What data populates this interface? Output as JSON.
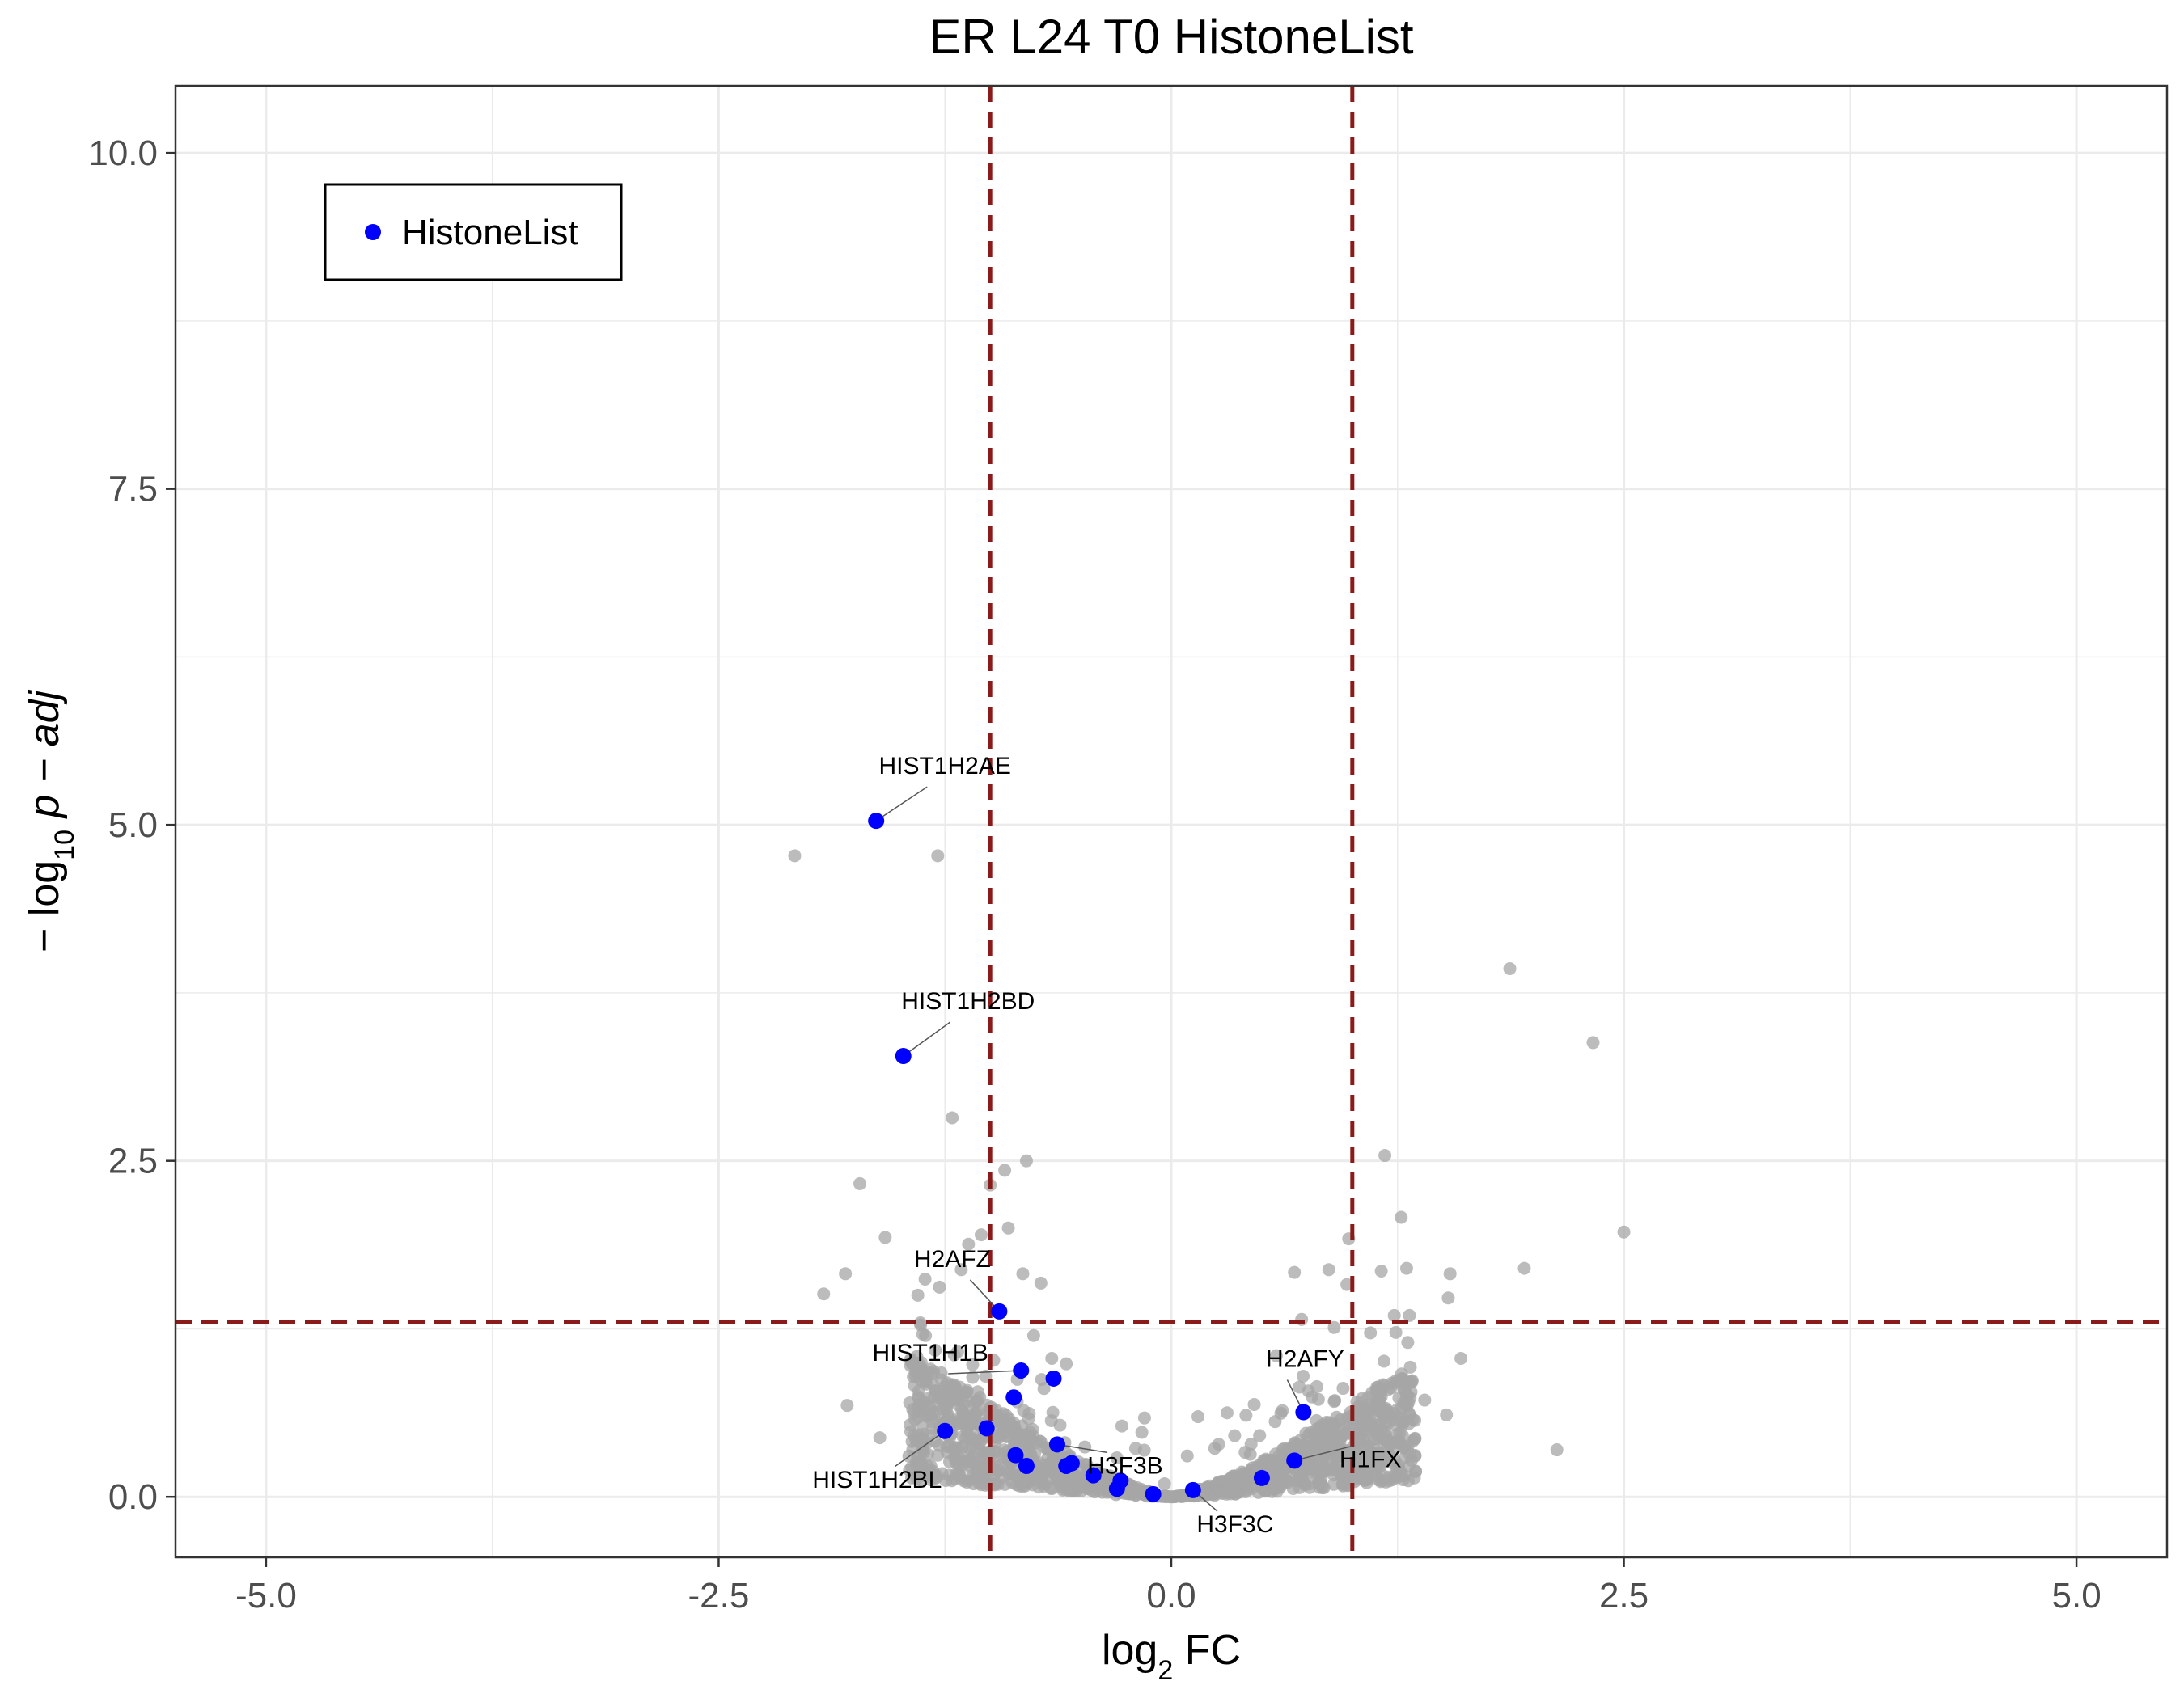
{
  "chart_data": {
    "type": "scatter",
    "title": "ER L24 T0 HistoneList",
    "xlabel": {
      "main": "log",
      "sub": "2",
      "tail": " FC"
    },
    "ylabel": {
      "prefix": "− log",
      "sub": "10",
      "italic": " p − adj"
    },
    "xlim": [
      -5.5,
      5.5
    ],
    "ylim": [
      -0.45,
      10.5
    ],
    "x_ticks": [
      -5.0,
      -2.5,
      0.0,
      2.5,
      5.0
    ],
    "x_tick_labels": [
      "-5.0",
      "-2.5",
      "0.0",
      "2.5",
      "5.0"
    ],
    "y_ticks": [
      0.0,
      2.5,
      5.0,
      7.5,
      10.0
    ],
    "y_tick_labels": [
      "0.0",
      "2.5",
      "5.0",
      "7.5",
      "10.0"
    ],
    "grid": true,
    "legend_position": "top-left",
    "thresholds": {
      "fc_lines": [
        -1,
        1
      ],
      "p_line": 1.3,
      "color": "#8b1a1a"
    },
    "colors": {
      "background_points": "#a6a6a6",
      "highlight": "#0000ff",
      "panel_border": "#333333",
      "grid": "#ebebeb"
    },
    "series": [
      {
        "name": "HistoneList",
        "color": "#0000ff",
        "points": [
          {
            "x": -1.63,
            "y": 5.03,
            "label": "HIST1H2AE"
          },
          {
            "x": -1.48,
            "y": 3.28,
            "label": "HIST1H2BD"
          },
          {
            "x": -0.95,
            "y": 1.38,
            "label": "H2AFZ"
          },
          {
            "x": -0.83,
            "y": 0.94,
            "label": "HIST1H1B"
          },
          {
            "x": -0.65,
            "y": 0.88,
            "label": ""
          },
          {
            "x": -0.87,
            "y": 0.74,
            "label": ""
          },
          {
            "x": -0.63,
            "y": 0.39,
            "label": "H3F3B"
          },
          {
            "x": -1.25,
            "y": 0.49,
            "label": "HIST1H2BL"
          },
          {
            "x": -1.02,
            "y": 0.51,
            "label": ""
          },
          {
            "x": -0.86,
            "y": 0.31,
            "label": ""
          },
          {
            "x": -0.8,
            "y": 0.23,
            "label": ""
          },
          {
            "x": -0.58,
            "y": 0.23,
            "label": ""
          },
          {
            "x": -0.55,
            "y": 0.25,
            "label": ""
          },
          {
            "x": -0.43,
            "y": 0.16,
            "label": ""
          },
          {
            "x": -0.28,
            "y": 0.12,
            "label": ""
          },
          {
            "x": -0.3,
            "y": 0.06,
            "label": ""
          },
          {
            "x": -0.1,
            "y": 0.02,
            "label": ""
          },
          {
            "x": 0.12,
            "y": 0.05,
            "label": "H3F3C"
          },
          {
            "x": 0.5,
            "y": 0.14,
            "label": ""
          },
          {
            "x": 0.68,
            "y": 0.27,
            "label": "H1FX"
          },
          {
            "x": 0.73,
            "y": 0.63,
            "label": "H2AFY"
          }
        ]
      },
      {
        "name": "",
        "color": "#a6a6a6",
        "points": [
          {
            "x": -2.08,
            "y": 4.77
          },
          {
            "x": -1.29,
            "y": 4.77
          },
          {
            "x": 1.87,
            "y": 3.93
          },
          {
            "x": 2.33,
            "y": 3.38
          },
          {
            "x": -1.21,
            "y": 2.82
          },
          {
            "x": -0.8,
            "y": 2.5
          },
          {
            "x": -0.92,
            "y": 2.43
          },
          {
            "x": -1.72,
            "y": 2.33
          },
          {
            "x": -1.0,
            "y": 2.32
          },
          {
            "x": 1.18,
            "y": 2.54
          },
          {
            "x": 1.27,
            "y": 2.08
          },
          {
            "x": 2.5,
            "y": 1.97
          },
          {
            "x": -0.9,
            "y": 2.0
          },
          {
            "x": -1.58,
            "y": 1.93
          },
          {
            "x": 0.98,
            "y": 1.92
          },
          {
            "x": 1.95,
            "y": 1.7
          },
          {
            "x": -1.8,
            "y": 1.66
          },
          {
            "x": -1.92,
            "y": 1.51
          },
          {
            "x": 1.54,
            "y": 1.66
          },
          {
            "x": 1.53,
            "y": 1.48
          },
          {
            "x": 0.68,
            "y": 1.67
          },
          {
            "x": 0.87,
            "y": 1.69
          },
          {
            "x": 0.97,
            "y": 1.58
          },
          {
            "x": 1.16,
            "y": 1.68
          },
          {
            "x": 1.3,
            "y": 1.7
          },
          {
            "x": -1.12,
            "y": 1.88
          },
          {
            "x": -1.05,
            "y": 1.95
          },
          {
            "x": -0.82,
            "y": 1.66
          },
          {
            "x": -0.72,
            "y": 1.59
          },
          {
            "x": -1.16,
            "y": 1.69
          },
          {
            "x": -1.36,
            "y": 1.62
          },
          {
            "x": -1.4,
            "y": 1.5
          },
          {
            "x": -1.28,
            "y": 1.56
          },
          {
            "x": 1.6,
            "y": 1.03
          },
          {
            "x": 2.13,
            "y": 0.35
          },
          {
            "x": -1.79,
            "y": 0.68
          },
          {
            "x": -1.61,
            "y": 0.44
          },
          {
            "x": 1.52,
            "y": 0.61
          },
          {
            "x": 1.4,
            "y": 0.72
          },
          {
            "x": -0.66,
            "y": 1.03
          },
          {
            "x": -0.58,
            "y": 0.99
          },
          {
            "x": 0.72,
            "y": 1.32
          },
          {
            "x": 0.9,
            "y": 1.26
          },
          {
            "x": 1.1,
            "y": 1.22
          },
          {
            "x": 0.58,
            "y": 1.05
          },
          {
            "x": -0.76,
            "y": 1.2
          },
          {
            "x": -1.18,
            "y": 1.08
          },
          {
            "x": -1.33,
            "y": 0.95
          }
        ]
      }
    ]
  }
}
